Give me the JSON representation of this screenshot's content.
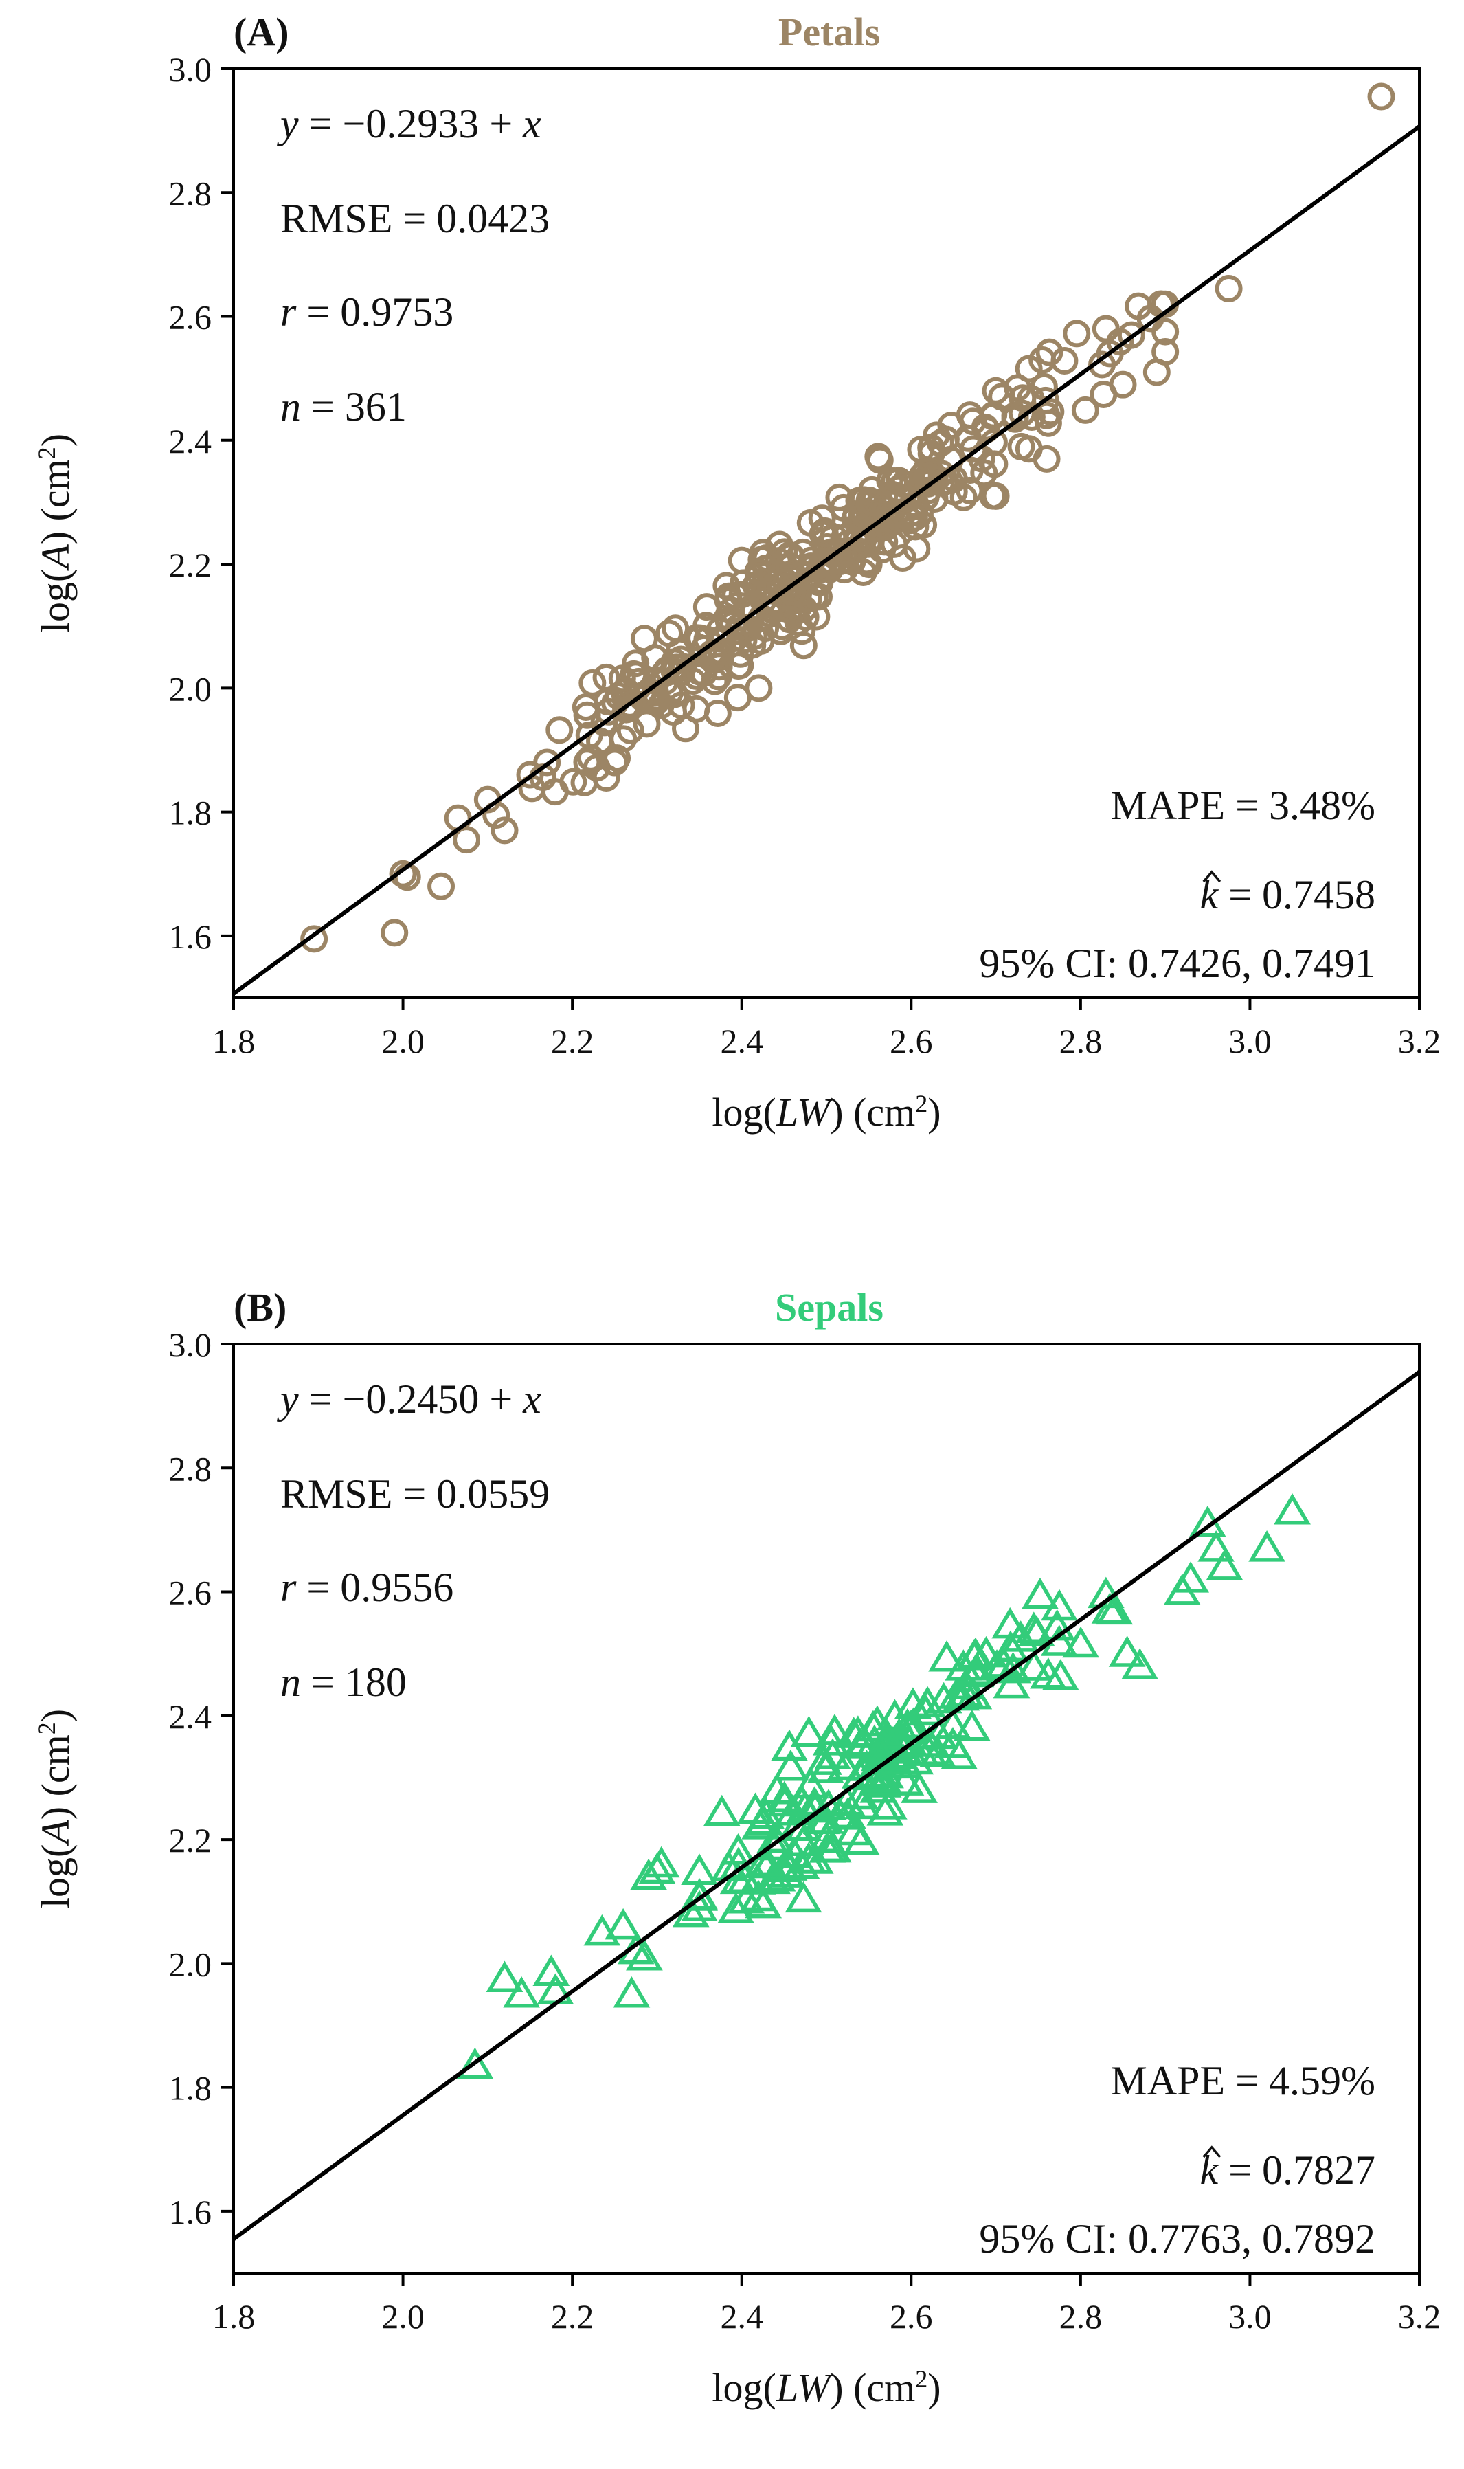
{
  "chart_data": [
    {
      "type": "scatter",
      "panel_label": "(A)",
      "title": "Petals",
      "color": "#9C8565",
      "marker": "circle",
      "xlabel": {
        "pre": "log(",
        "var": "LW",
        "post": ") (cm",
        "sup": "2",
        "close": ")"
      },
      "ylabel": {
        "pre": "log(",
        "var": "A",
        "post": ") (cm",
        "sup": "2",
        "close": ")"
      },
      "xlim": [
        1.8,
        3.2
      ],
      "ylim": [
        1.5,
        3.0
      ],
      "xticks": [
        "1.8",
        "2.0",
        "2.2",
        "2.4",
        "2.6",
        "2.8",
        "3.0",
        "3.2"
      ],
      "yticks": [
        "1.6",
        "1.8",
        "2.0",
        "2.2",
        "2.4",
        "2.6",
        "2.8",
        "3.0"
      ],
      "fit_line": {
        "intercept": -0.2933,
        "slope": 1
      },
      "annotations_left": [
        {
          "italic": "y",
          "rest": " = −0.2933 + ",
          "italic2": "x"
        },
        {
          "italic": "",
          "rest": "RMSE = 0.0423",
          "italic2": ""
        },
        {
          "italic": "r",
          "rest": " = 0.9753",
          "italic2": ""
        },
        {
          "italic": "n",
          "rest": " = 361",
          "italic2": ""
        }
      ],
      "mape": "MAPE = 3.48%",
      "k_hat_symbol": "k",
      "k_hat_value": " = 0.7458",
      "ci": "95% CI: 0.7426, 0.7491",
      "outliers": [
        [
          1.895,
          1.595
        ],
        [
          1.99,
          1.605
        ],
        [
          2.0,
          1.7
        ],
        [
          2.005,
          1.695
        ],
        [
          2.045,
          1.68
        ],
        [
          2.065,
          1.79
        ],
        [
          2.075,
          1.755
        ],
        [
          2.1,
          1.82
        ],
        [
          2.11,
          1.795
        ],
        [
          2.15,
          1.86
        ],
        [
          2.17,
          1.88
        ],
        [
          2.24,
          1.855
        ],
        [
          2.25,
          1.88
        ],
        [
          2.42,
          2.0
        ],
        [
          2.285,
          2.08
        ],
        [
          2.62,
          2.33
        ],
        [
          2.7,
          2.31
        ],
        [
          2.76,
          2.37
        ],
        [
          2.85,
          2.49
        ],
        [
          2.89,
          2.51
        ],
        [
          2.975,
          2.645
        ],
        [
          3.155,
          2.955
        ],
        [
          2.86,
          2.57
        ],
        [
          2.895,
          2.62
        ],
        [
          2.83,
          2.58
        ],
        [
          2.7,
          2.48
        ],
        [
          2.76,
          2.44
        ],
        [
          2.59,
          2.21
        ],
        [
          2.55,
          2.2
        ]
      ],
      "cloud": {
        "n": 332,
        "x_range": [
          2.12,
          2.9
        ],
        "x_center": 2.48,
        "x_sd": 0.15,
        "resid_sd": 0.042,
        "seed": 7
      }
    },
    {
      "type": "scatter",
      "panel_label": "(B)",
      "title": "Sepals",
      "color": "#33CC7A",
      "marker": "triangle",
      "xlabel": {
        "pre": "log(",
        "var": "LW",
        "post": ") (cm",
        "sup": "2",
        "close": ")"
      },
      "ylabel": {
        "pre": "log(",
        "var": "A",
        "post": ") (cm",
        "sup": "2",
        "close": ")"
      },
      "xlim": [
        1.8,
        3.2
      ],
      "ylim": [
        1.5,
        3.0
      ],
      "xticks": [
        "1.8",
        "2.0",
        "2.2",
        "2.4",
        "2.6",
        "2.8",
        "3.0",
        "3.2"
      ],
      "yticks": [
        "1.6",
        "1.8",
        "2.0",
        "2.2",
        "2.4",
        "2.6",
        "2.8",
        "3.0"
      ],
      "fit_line": {
        "intercept": -0.245,
        "slope": 1
      },
      "annotations_left": [
        {
          "italic": "y",
          "rest": " = −0.2450 + ",
          "italic2": "x"
        },
        {
          "italic": "",
          "rest": "RMSE = 0.0559",
          "italic2": ""
        },
        {
          "italic": "r",
          "rest": " = 0.9556",
          "italic2": ""
        },
        {
          "italic": "n",
          "rest": " = 180",
          "italic2": ""
        }
      ],
      "mape": "MAPE = 4.59%",
      "k_hat_symbol": "k",
      "k_hat_value": " = 0.7827",
      "ci": "95% CI: 0.7763, 0.7892",
      "outliers": [
        [
          2.085,
          1.835
        ],
        [
          2.12,
          1.975
        ],
        [
          2.14,
          1.95
        ],
        [
          2.175,
          1.985
        ],
        [
          2.18,
          1.955
        ],
        [
          2.235,
          2.05
        ],
        [
          2.26,
          2.06
        ],
        [
          2.27,
          1.95
        ],
        [
          2.275,
          2.02
        ],
        [
          2.285,
          2.01
        ],
        [
          2.29,
          2.14
        ],
        [
          2.3,
          2.15
        ],
        [
          2.305,
          2.16
        ],
        [
          2.34,
          2.08
        ],
        [
          2.775,
          2.575
        ],
        [
          2.83,
          2.595
        ],
        [
          2.855,
          2.5
        ],
        [
          2.87,
          2.48
        ],
        [
          2.92,
          2.6
        ],
        [
          2.93,
          2.62
        ],
        [
          2.95,
          2.71
        ],
        [
          2.96,
          2.67
        ],
        [
          2.97,
          2.64
        ],
        [
          3.02,
          2.67
        ],
        [
          3.05,
          2.73
        ]
      ],
      "cloud": {
        "n": 155,
        "x_range": [
          2.35,
          2.84
        ],
        "x_center": 2.56,
        "x_sd": 0.11,
        "resid_sd": 0.052,
        "seed": 19
      }
    }
  ]
}
